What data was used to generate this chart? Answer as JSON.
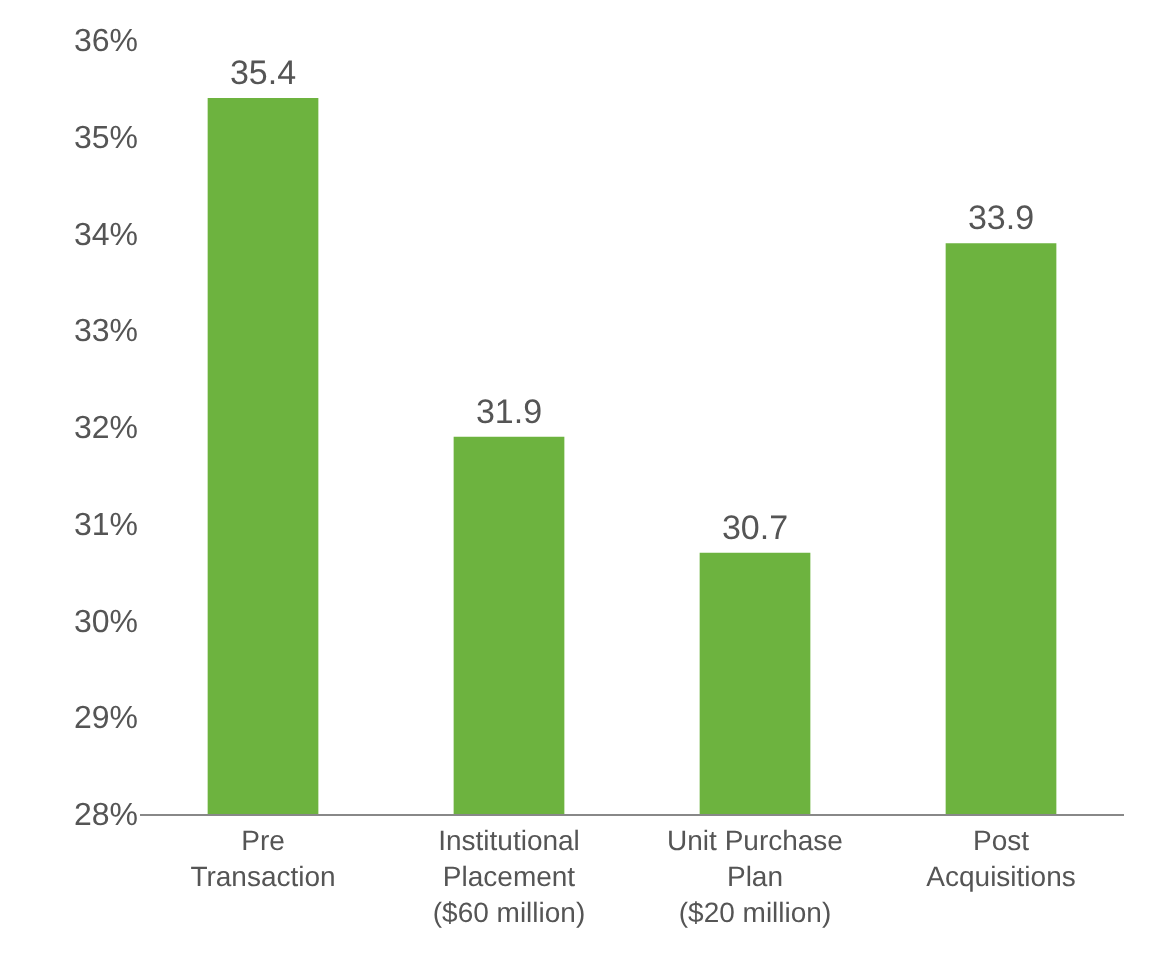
{
  "chart_data": {
    "type": "bar",
    "categories": [
      "Pre\nTransaction",
      "Institutional\nPlacement\n($60 million)",
      "Unit Purchase\nPlan\n($20 million)",
      "Post\nAcquisitions"
    ],
    "values": [
      35.4,
      31.9,
      30.7,
      33.9
    ],
    "color": "#6db33f",
    "ylim": [
      28,
      36
    ],
    "yticks": [
      {
        "value": 28,
        "label": "28%"
      },
      {
        "value": 29,
        "label": "29%"
      },
      {
        "value": 30,
        "label": "30%"
      },
      {
        "value": 31,
        "label": "31%"
      },
      {
        "value": 32,
        "label": "32%"
      },
      {
        "value": 33,
        "label": "33%"
      },
      {
        "value": 34,
        "label": "34%"
      },
      {
        "value": 35,
        "label": "35%"
      },
      {
        "value": 36,
        "label": "36%"
      }
    ],
    "grid": false,
    "data_labels": true
  }
}
